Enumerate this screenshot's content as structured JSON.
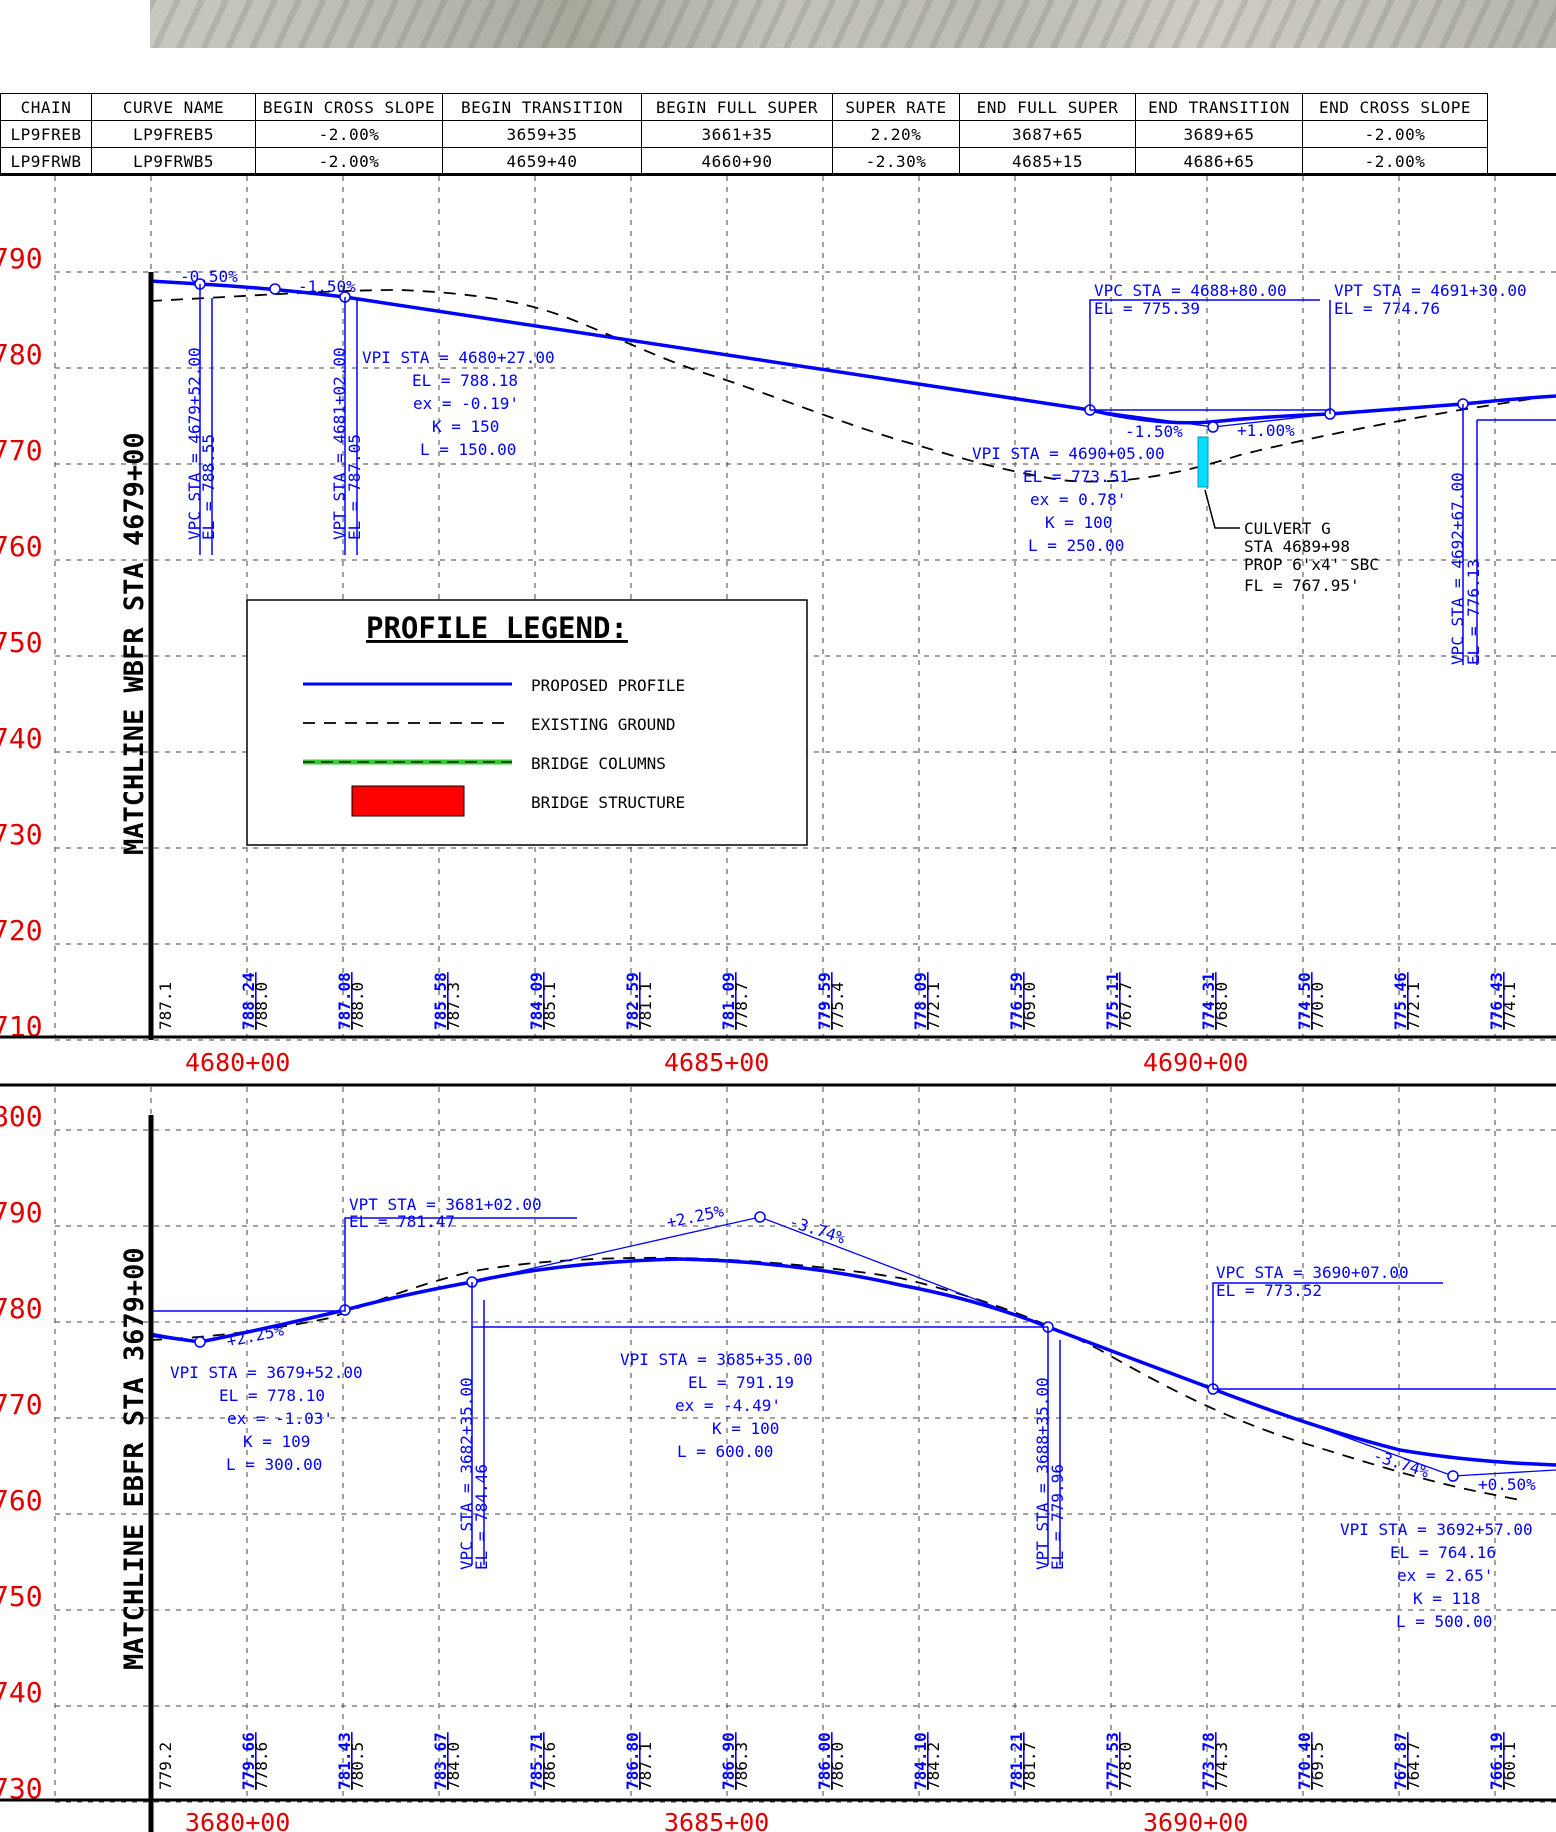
{
  "superelevation_table": {
    "headers": [
      "CHAIN",
      "CURVE NAME",
      "BEGIN CROSS SLOPE",
      "BEGIN TRANSITION",
      "BEGIN FULL SUPER",
      "SUPER RATE",
      "END FULL SUPER",
      "END TRANSITION",
      "END CROSS SLOPE"
    ],
    "rows": [
      [
        "LP9FREB",
        "LP9FREB5",
        "-2.00%",
        "3659+35",
        "3661+35",
        "2.20%",
        "3687+65",
        "3689+65",
        "-2.00%"
      ],
      [
        "LP9FRWB",
        "LP9FRWB5",
        "-2.00%",
        "4659+40",
        "4660+90",
        "-2.30%",
        "4685+15",
        "4686+65",
        "-2.00%"
      ]
    ]
  },
  "profile_wb": {
    "matchline": "MATCHLINE WBFR STA 4679+00",
    "elevations": [
      "790",
      "780",
      "770",
      "760",
      "750",
      "740",
      "730",
      "720",
      "710"
    ],
    "stations": [
      "4680+00",
      "4685+00",
      "4690+00"
    ],
    "grades": [
      "-0.50%",
      "-1.50%",
      "-1.50%",
      "+1.00%"
    ],
    "labels": {
      "vpc1_sta": "VPC STA = 4679+52.00",
      "vpc1_el": "EL = 788.55",
      "vpt1_sta": "VPT STA = 4681+02.00",
      "vpt1_el": "EL = 787.05",
      "vpi1": [
        "VPI STA = 4680+27.00",
        "EL = 788.18",
        "ex = -0.19'",
        "K = 150",
        "L = 150.00"
      ],
      "vpc2": [
        "VPC STA = 4688+80.00",
        "EL = 775.39"
      ],
      "vpt2": [
        "VPT STA = 4691+30.00",
        "EL = 774.76"
      ],
      "vpi2": [
        "VPI STA = 4690+05.00",
        "EL = 773.51",
        "ex = 0.78'",
        "K = 100",
        "L = 250.00"
      ],
      "culvert": [
        "CULVERT G",
        "STA 4689+98",
        "PROP 6'x4' SBC",
        "FL = 767.95'"
      ],
      "vpc3_sta": "VPC STA = 4692+67.00",
      "vpc3_el": "EL = 776.13"
    },
    "bottom_values": [
      [
        "",
        "787.1"
      ],
      [
        "788.24",
        "788.0"
      ],
      [
        "787.08",
        "788.0"
      ],
      [
        "785.58",
        "787.3"
      ],
      [
        "784.09",
        "785.1"
      ],
      [
        "782.59",
        "781.1"
      ],
      [
        "781.09",
        "778.7"
      ],
      [
        "779.59",
        "775.4"
      ],
      [
        "778.09",
        "772.1"
      ],
      [
        "776.59",
        "769.0"
      ],
      [
        "775.11",
        "767.7"
      ],
      [
        "774.31",
        "768.0"
      ],
      [
        "774.50",
        "770.0"
      ],
      [
        "775.46",
        "772.1"
      ],
      [
        "776.43",
        "774.1"
      ]
    ]
  },
  "legend": {
    "title": "PROFILE LEGEND:",
    "items": [
      "PROPOSED PROFILE",
      "EXISTING GROUND",
      "BRIDGE COLUMNS",
      "BRIDGE STRUCTURE"
    ],
    "colors": {
      "proposed": "#0000ff",
      "existing": "#000000",
      "columns": "#33cc33",
      "structure": "#ff0000"
    }
  },
  "profile_eb": {
    "matchline": "MATCHLINE EBFR STA 3679+00",
    "elevations": [
      "800",
      "790",
      "780",
      "770",
      "760",
      "750",
      "740",
      "730"
    ],
    "stations": [
      "3680+00",
      "3685+00",
      "3690+00"
    ],
    "grades": [
      "+2.25%",
      "+2.25%",
      "-3.74%",
      "-3.74%",
      "+0.50%"
    ],
    "labels": {
      "vpt1": [
        "VPT STA = 3681+02.00",
        "EL = 781.47"
      ],
      "vpi1": [
        "VPI STA = 3679+52.00",
        "EL = 778.10",
        "ex = -1.03'",
        "K = 109",
        "L = 300.00"
      ],
      "vpc2_sta": "VPC STA = 3682+35.00",
      "vpc2_el": "EL = 784.46",
      "vpi2": [
        "VPI STA = 3685+35.00",
        "EL = 791.19",
        "ex = -4.49'",
        "K = 100",
        "L = 600.00"
      ],
      "vpt2_sta": "VPT STA = 3688+35.00",
      "vpt2_el": "EL = 779.96",
      "vpc3": [
        "VPC STA = 3690+07.00",
        "EL = 773.52"
      ],
      "vpi3": [
        "VPI STA = 3692+57.00",
        "EL = 764.16",
        "ex = 2.65'",
        "K = 118",
        "L = 500.00"
      ]
    },
    "bottom_values": [
      [
        "",
        "779.2"
      ],
      [
        "779.66",
        "778.6"
      ],
      [
        "781.43",
        "780.5"
      ],
      [
        "783.67",
        "784.0"
      ],
      [
        "785.71",
        "786.6"
      ],
      [
        "786.80",
        "787.1"
      ],
      [
        "786.90",
        "786.3"
      ],
      [
        "786.00",
        "786.0"
      ],
      [
        "784.10",
        "784.2"
      ],
      [
        "781.21",
        "781.7"
      ],
      [
        "777.53",
        "778.0"
      ],
      [
        "773.78",
        "774.3"
      ],
      [
        "770.40",
        "769.5"
      ],
      [
        "767.87",
        "764.7"
      ],
      [
        "766.19",
        "760.1"
      ]
    ]
  }
}
